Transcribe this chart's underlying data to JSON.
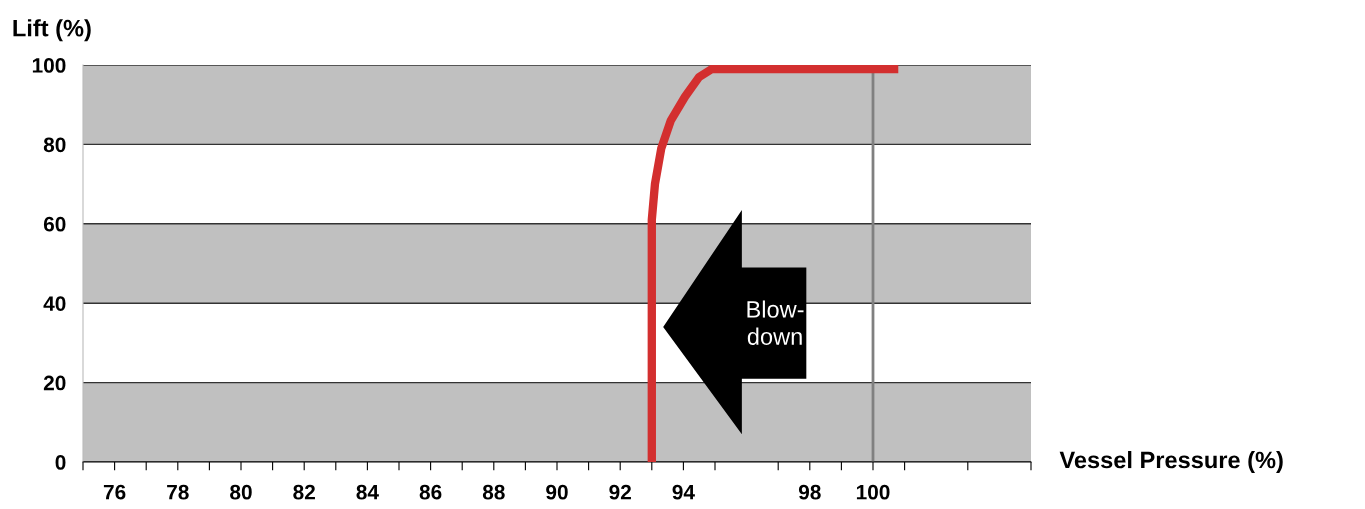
{
  "chart_data": {
    "type": "line",
    "xlabel": "Vessel Pressure (%)",
    "ylabel": "Lift (%)",
    "xlim": [
      75,
      105
    ],
    "xticks": [
      {
        "value": 75,
        "label": null
      },
      {
        "value": 76,
        "label": "76"
      },
      {
        "value": 77,
        "label": null
      },
      {
        "value": 78,
        "label": "78"
      },
      {
        "value": 79,
        "label": null
      },
      {
        "value": 80,
        "label": "80"
      },
      {
        "value": 81,
        "label": null
      },
      {
        "value": 82,
        "label": "82"
      },
      {
        "value": 83,
        "label": null
      },
      {
        "value": 84,
        "label": "84"
      },
      {
        "value": 85,
        "label": null
      },
      {
        "value": 86,
        "label": "86"
      },
      {
        "value": 87,
        "label": null
      },
      {
        "value": 88,
        "label": "88"
      },
      {
        "value": 89,
        "label": null
      },
      {
        "value": 90,
        "label": "90"
      },
      {
        "value": 91,
        "label": null
      },
      {
        "value": 92,
        "label": "92"
      },
      {
        "value": 93,
        "label": null
      },
      {
        "value": 94,
        "label": "94"
      },
      {
        "value": 95,
        "label": null
      },
      {
        "value": 97,
        "label": null
      },
      {
        "value": 98,
        "label": "98"
      },
      {
        "value": 99,
        "label": null
      },
      {
        "value": 100,
        "label": "100"
      },
      {
        "value": 101,
        "label": null
      },
      {
        "value": 103,
        "label": null
      },
      {
        "value": 105,
        "label": null
      }
    ],
    "ylim": [
      0,
      100
    ],
    "yticks": [
      0,
      20,
      40,
      60,
      80,
      100
    ],
    "grid": "y",
    "series": [
      {
        "color": "#d32f2f",
        "x": [
          93.0,
          93.0,
          93.1,
          93.3,
          93.6,
          94.05,
          94.5,
          94.9,
          95.3,
          100.8
        ],
        "values": [
          0,
          61,
          70,
          79,
          86,
          92,
          97,
          99,
          99,
          99
        ]
      }
    ],
    "bands": [
      {
        "axis": "y",
        "from": 0,
        "to": 20,
        "color": "#c0c0c0"
      },
      {
        "axis": "y",
        "from": 40,
        "to": 60,
        "color": "#c0c0c0"
      },
      {
        "axis": "y",
        "from": 80,
        "to": 100,
        "color": "#c0c0c0"
      }
    ],
    "ref_lines": [
      {
        "axis": "x",
        "value": 100,
        "color": "#808080"
      }
    ],
    "annotations": [
      "Blow-\ndown"
    ],
    "marker": "none",
    "line_style": "solid"
  }
}
